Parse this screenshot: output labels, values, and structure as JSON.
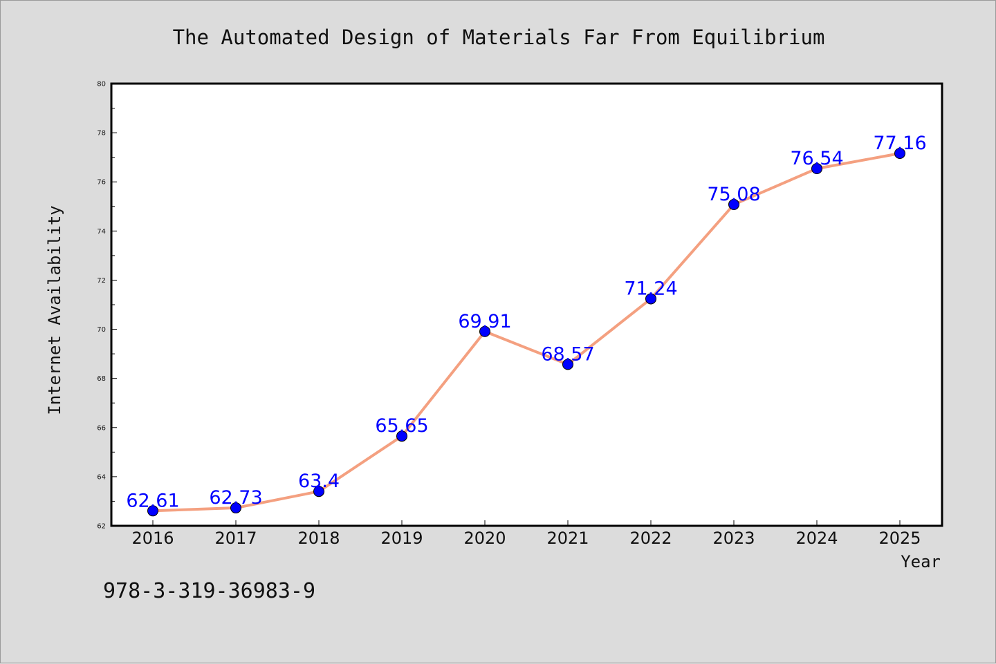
{
  "isbn": "978-3-319-36983-9",
  "colors": {
    "background": "#dcdcdc",
    "line": "#f4a080",
    "marker": "#0000ff",
    "data_label": "#0000ff"
  },
  "chart_data": {
    "type": "line",
    "title": "The Automated Design of Materials Far From Equilibrium",
    "xlabel": "Year",
    "ylabel": "Internet Availability",
    "x": [
      "2016",
      "2017",
      "2018",
      "2019",
      "2020",
      "2021",
      "2022",
      "2023",
      "2024",
      "2025"
    ],
    "series": [
      {
        "values": [
          62.61,
          62.73,
          63.4,
          65.65,
          69.91,
          68.57,
          71.24,
          75.08,
          76.54,
          77.16
        ],
        "labels": [
          "62.61",
          "62.73",
          "63.4",
          "65.65",
          "69.91",
          "68.57",
          "71.24",
          "75.08",
          "76.54",
          "77.16"
        ]
      }
    ],
    "ylim": [
      62,
      80
    ],
    "yticks": [
      62,
      64,
      66,
      68,
      70,
      72,
      74,
      76,
      78,
      80
    ],
    "ytick_labels": [
      "62",
      "64",
      "66",
      "68",
      "70",
      "72",
      "74",
      "76",
      "78",
      "80"
    ],
    "grid": false,
    "legend": "none"
  }
}
